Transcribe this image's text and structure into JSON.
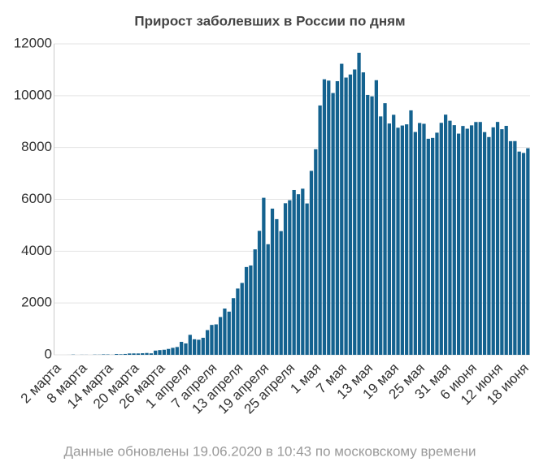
{
  "chart_data": {
    "type": "bar",
    "title": "Прирост заболевших в России по дням",
    "categories": [
      "2 марта",
      null,
      null,
      null,
      null,
      null,
      "8 марта",
      null,
      null,
      null,
      null,
      null,
      "14 марта",
      null,
      null,
      null,
      null,
      null,
      "20 марта",
      null,
      null,
      null,
      null,
      null,
      "26 марта",
      null,
      null,
      null,
      null,
      null,
      "1 апреля",
      null,
      null,
      null,
      null,
      null,
      "7 апреля",
      null,
      null,
      null,
      null,
      null,
      "13 апреля",
      null,
      null,
      null,
      null,
      null,
      "19 апреля",
      null,
      null,
      null,
      null,
      null,
      "25 апреля",
      null,
      null,
      null,
      null,
      null,
      "1 мая",
      null,
      null,
      null,
      null,
      null,
      "7 мая",
      null,
      null,
      null,
      null,
      null,
      "13 мая",
      null,
      null,
      null,
      null,
      null,
      "19 мая",
      null,
      null,
      null,
      null,
      null,
      "25 мая",
      null,
      null,
      null,
      null,
      null,
      "31 мая",
      null,
      null,
      null,
      null,
      null,
      "6 июня",
      null,
      null,
      null,
      null,
      null,
      "12 июня",
      null,
      null,
      null,
      null,
      null,
      "18 июня",
      null
    ],
    "values": [
      0,
      0,
      0,
      1,
      9,
      0,
      4,
      3,
      0,
      8,
      6,
      17,
      14,
      4,
      30,
      21,
      33,
      52,
      54,
      53,
      61,
      71,
      57,
      163,
      182,
      196,
      228,
      270,
      302,
      501,
      440,
      771,
      601,
      582,
      658,
      954,
      1154,
      1175,
      1459,
      1786,
      1667,
      2186,
      2558,
      2774,
      3388,
      3448,
      4070,
      4785,
      6060,
      4268,
      5642,
      5236,
      4774,
      5849,
      5966,
      6361,
      6198,
      6411,
      5841,
      7099,
      7933,
      9623,
      10633,
      10581,
      10102,
      10559,
      11231,
      10699,
      10817,
      11012,
      11656,
      10899,
      10028,
      9974,
      10598,
      9200,
      9709,
      8926,
      9263,
      8764,
      8849,
      8894,
      9434,
      8599,
      8946,
      8915,
      8338,
      8371,
      8572,
      8952,
      9268,
      9035,
      8863,
      8536,
      8831,
      8726,
      8855,
      8984,
      8985,
      8595,
      8404,
      8779,
      8987,
      8706,
      8835,
      8246,
      8248,
      7843,
      7790,
      7972
    ],
    "color": "#14628f",
    "ylim": [
      0,
      12000
    ],
    "yticks": [
      0,
      2000,
      4000,
      6000,
      8000,
      10000,
      12000
    ],
    "grid": true,
    "caption": "Данные обновлены 19.06.2020 в 10:43 по московскому времени"
  }
}
